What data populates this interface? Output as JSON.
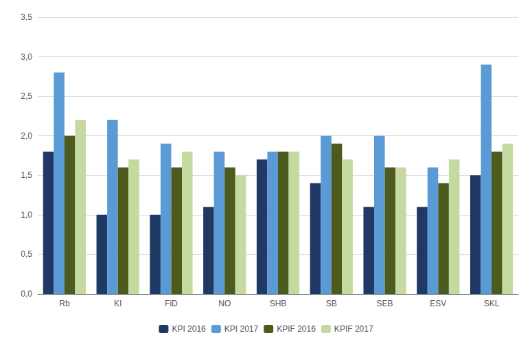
{
  "chart_data": {
    "type": "bar",
    "categories": [
      "Rb",
      "KI",
      "FiD",
      "NO",
      "SHB",
      "SB",
      "SEB",
      "ESV",
      "SKL"
    ],
    "series": [
      {
        "name": "KPI 2016",
        "color": "#1f3864",
        "values": [
          1.8,
          1.0,
          1.0,
          1.1,
          1.7,
          1.4,
          1.1,
          1.1,
          1.5
        ]
      },
      {
        "name": "KPI 2017",
        "color": "#5b9bd5",
        "values": [
          2.8,
          2.2,
          1.9,
          1.8,
          1.8,
          2.0,
          2.0,
          1.6,
          2.9
        ]
      },
      {
        "name": "KPIF 2016",
        "color": "#4d5a1e",
        "values": [
          2.0,
          1.6,
          1.6,
          1.6,
          1.8,
          1.9,
          1.6,
          1.4,
          1.8
        ]
      },
      {
        "name": "KPIF 2017",
        "color": "#c6d9a0",
        "values": [
          2.2,
          1.7,
          1.8,
          1.5,
          1.8,
          1.7,
          1.6,
          1.7,
          1.9
        ]
      }
    ],
    "ylim": [
      0,
      3.5
    ],
    "yticks": [
      {
        "value": 0.0,
        "label": "0,0"
      },
      {
        "value": 0.5,
        "label": "0,5"
      },
      {
        "value": 1.0,
        "label": "1,0"
      },
      {
        "value": 1.5,
        "label": "1,5"
      },
      {
        "value": 2.0,
        "label": "2,0"
      },
      {
        "value": 2.5,
        "label": "2,5"
      },
      {
        "value": 3.0,
        "label": "3,0"
      },
      {
        "value": 3.5,
        "label": "3,5"
      }
    ],
    "grid": true,
    "legend": "bottom"
  }
}
